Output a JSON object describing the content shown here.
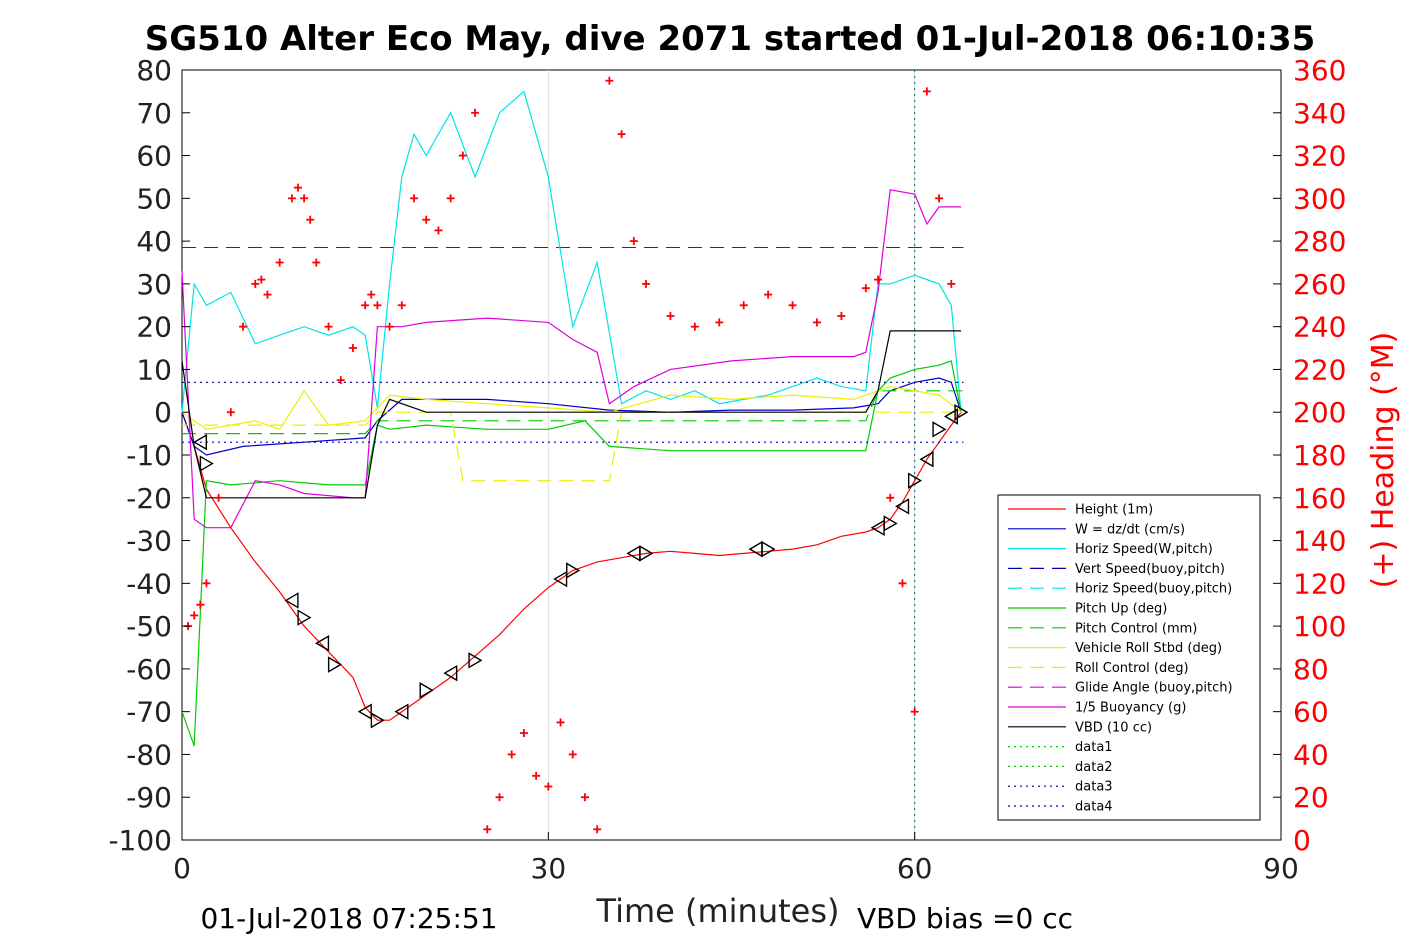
{
  "chart_data": {
    "type": "line",
    "title": "SG510 Alter Eco May, dive 2071 started 01-Jul-2018 06:10:35",
    "xlabel": "Time (minutes)",
    "ylabel_right": "(+) Heading (°M)",
    "footer_left": "01-Jul-2018 07:25:51",
    "footer_right": "VBD bias =0 cc",
    "xlim": [
      0,
      90
    ],
    "ylim": [
      -100,
      80
    ],
    "ylim_right": [
      0,
      360
    ],
    "x_ticks": [
      "0",
      "30",
      "60",
      "90"
    ],
    "y_ticks": [
      "80",
      "70",
      "60",
      "50",
      "40",
      "30",
      "20",
      "10",
      "0",
      "-10",
      "-20",
      "-30",
      "-40",
      "-50",
      "-60",
      "-70",
      "-80",
      "-90",
      "-100"
    ],
    "y_ticks_right": [
      "360",
      "340",
      "320",
      "300",
      "280",
      "260",
      "240",
      "220",
      "200",
      "180",
      "160",
      "140",
      "120",
      "100",
      "80",
      "60",
      "40",
      "20",
      "0"
    ],
    "grid": "x-only",
    "legend_placement": "lower-right",
    "series": [
      {
        "name": "Height (1m)",
        "color": "#ff0000",
        "style": "solid",
        "x": [
          0,
          1,
          2,
          4,
          6,
          8,
          10,
          12,
          14,
          15,
          16,
          17,
          18,
          20,
          22,
          24,
          26,
          28,
          30,
          32,
          34,
          36,
          38,
          40,
          42,
          44,
          46,
          48,
          50,
          52,
          54,
          56,
          57,
          58,
          59,
          60,
          61,
          62,
          63,
          63.8
        ],
        "y": [
          0,
          -8,
          -18,
          -27,
          -35,
          -42,
          -50,
          -56,
          -62,
          -69,
          -72,
          -72,
          -70,
          -66,
          -62,
          -57,
          -52,
          -46,
          -41,
          -37,
          -35,
          -34,
          -33,
          -32.5,
          -33,
          -33.5,
          -33,
          -32.5,
          -32,
          -31,
          -29,
          -28,
          -27,
          -25,
          -21,
          -16,
          -11,
          -7,
          -3,
          0
        ]
      },
      {
        "name": "W = dz/dt (cm/s)",
        "color": "#0000cc",
        "style": "solid",
        "x": [
          0,
          1,
          2,
          5,
          10,
          15,
          16,
          18,
          25,
          30,
          35,
          40,
          45,
          50,
          55,
          57,
          58,
          60,
          62,
          63,
          63.8
        ],
        "y": [
          0,
          -8,
          -10,
          -8,
          -7,
          -6,
          -2,
          3,
          3,
          2,
          0.5,
          0,
          0.5,
          0.5,
          1,
          2,
          5,
          7,
          8,
          7,
          0
        ]
      },
      {
        "name": "Horiz Speed(W,pitch)",
        "color": "#00e5e5",
        "style": "solid",
        "x": [
          0,
          1,
          2,
          4,
          6,
          8,
          10,
          12,
          14,
          15,
          16,
          17,
          18,
          19,
          20,
          22,
          24,
          26,
          28,
          30,
          32,
          34,
          36,
          38,
          40,
          42,
          44,
          46,
          48,
          50,
          52,
          54,
          56,
          57,
          58,
          60,
          62,
          63,
          63.8
        ],
        "y": [
          0,
          30,
          25,
          28,
          16,
          18,
          20,
          18,
          20,
          18,
          1,
          30,
          55,
          65,
          60,
          70,
          55,
          70,
          75,
          55,
          20,
          35,
          2,
          5,
          3,
          5,
          2,
          3,
          4,
          6,
          8,
          6,
          5,
          30,
          30,
          32,
          30,
          25,
          0
        ]
      },
      {
        "name": "Vert Speed(buoy,pitch)",
        "color": "#0000aa",
        "style": "dashed",
        "x": [],
        "y": []
      },
      {
        "name": "Horiz Speed(buoy,pitch)",
        "color": "#00e5e5",
        "style": "dashed",
        "x": [],
        "y": []
      },
      {
        "name": "Pitch Up (deg)",
        "color": "#00cc00",
        "style": "solid",
        "x": [
          0,
          1,
          2,
          4,
          8,
          12,
          15,
          16,
          17,
          20,
          25,
          30,
          33,
          35,
          40,
          45,
          50,
          56,
          57,
          58,
          60,
          62,
          63,
          63.8
        ],
        "y": [
          -70,
          -78,
          -16,
          -17,
          -16,
          -17,
          -17,
          -3,
          -4,
          -3,
          -4,
          -4,
          -2,
          -8,
          -9,
          -9,
          -9,
          -9,
          5,
          8,
          10,
          11,
          12,
          0
        ]
      },
      {
        "name": "Pitch Control (mm)",
        "color": "#00cc00",
        "style": "dashed",
        "x": [
          0,
          15,
          16,
          56,
          57,
          64
        ],
        "y": [
          -5,
          -5,
          -2,
          -2,
          5,
          5
        ]
      },
      {
        "name": "Vehicle Roll Stbd (deg)",
        "color": "#eeee00",
        "style": "solid",
        "x": [
          0,
          2,
          4,
          6,
          8,
          10,
          12,
          15,
          17,
          20,
          25,
          30,
          35,
          40,
          45,
          50,
          55,
          57,
          58,
          60,
          62,
          63.8
        ],
        "y": [
          0,
          -4,
          -3,
          -2,
          -4,
          5,
          -3,
          -2,
          4,
          3,
          2,
          1,
          0,
          4,
          3,
          4,
          3,
          5,
          6,
          5,
          4,
          0
        ]
      },
      {
        "name": "Roll Control (deg)",
        "color": "#eeee00",
        "style": "dashed",
        "x": [
          0,
          15,
          16,
          22,
          23,
          35,
          36,
          64
        ],
        "y": [
          -3,
          -3,
          0,
          0,
          -16,
          -16,
          0,
          0
        ]
      },
      {
        "name": "Glide Angle (buoy,pitch)",
        "color": "#dd00dd",
        "style": "dashed",
        "x": [],
        "y": []
      },
      {
        "name": "1/5 Buoyancy (g)",
        "color": "#dd00dd",
        "style": "solid",
        "x": [
          0,
          1,
          2,
          4,
          6,
          8,
          10,
          14,
          15,
          16,
          18,
          20,
          25,
          30,
          32,
          34,
          35,
          37,
          40,
          45,
          50,
          55,
          56,
          57,
          58,
          60,
          61,
          62,
          63.8
        ],
        "y": [
          33,
          -25,
          -27,
          -27,
          -16,
          -17,
          -19,
          -20,
          -20,
          20,
          20,
          21,
          22,
          21,
          17,
          14,
          2,
          6,
          10,
          12,
          13,
          13,
          14,
          28,
          52,
          51,
          44,
          48,
          48
        ]
      },
      {
        "name": "VBD (10 cc)",
        "color": "#000000",
        "style": "solid",
        "x": [
          0,
          1,
          2,
          10,
          15,
          16,
          17,
          20,
          56,
          57,
          58,
          60,
          63.8
        ],
        "y": [
          12,
          -8,
          -20,
          -20,
          -20,
          -3,
          3,
          0,
          0,
          5,
          19,
          19,
          19
        ]
      },
      {
        "name": "data1",
        "color": "#00cc00",
        "style": "dotted",
        "x": [],
        "y": []
      },
      {
        "name": "data2",
        "color": "#00cc00",
        "style": "dotted",
        "x": [],
        "y": []
      },
      {
        "name": "data3",
        "color": "#000088",
        "style": "dotted",
        "x": [
          0,
          64
        ],
        "y": [
          7,
          7
        ]
      },
      {
        "name": "data4",
        "color": "#0000cc",
        "style": "dotted",
        "x": [
          0,
          64
        ],
        "y": [
          -7,
          -7
        ]
      }
    ],
    "reference_lines": [
      {
        "axis": "y",
        "value": 38.5,
        "color": "#aa0000",
        "style": "dashed",
        "x_range": [
          0,
          64
        ]
      },
      {
        "axis": "x",
        "value": 60,
        "color": "#006666",
        "style": "dotted"
      }
    ],
    "heading_series": {
      "color": "#ff0000",
      "marker": "plus",
      "axis": "right",
      "x": [
        0.5,
        1,
        1.5,
        2,
        3,
        4,
        5,
        6,
        6.5,
        7,
        8,
        9,
        9.5,
        10,
        10.5,
        11,
        12,
        13,
        14,
        15,
        15.5,
        16,
        17,
        18,
        19,
        20,
        21,
        22,
        23,
        24,
        25,
        26,
        27,
        28,
        29,
        30,
        31,
        32,
        33,
        34,
        35,
        36,
        37,
        38,
        40,
        42,
        44,
        46,
        48,
        50,
        52,
        54,
        56,
        57,
        58,
        59,
        60,
        61,
        62,
        63
      ],
      "y": [
        100,
        105,
        110,
        120,
        160,
        200,
        240,
        260,
        262,
        255,
        270,
        300,
        305,
        300,
        290,
        270,
        240,
        215,
        230,
        250,
        255,
        250,
        240,
        250,
        300,
        290,
        285,
        300,
        320,
        340,
        5,
        20,
        40,
        50,
        30,
        25,
        55,
        40,
        20,
        5,
        355,
        330,
        280,
        260,
        245,
        240,
        242,
        250,
        255,
        250,
        242,
        245,
        258,
        262,
        160,
        120,
        60,
        350,
        300,
        260
      ]
    },
    "markers": {
      "name": "triangles",
      "color": "#000000",
      "x": [
        1.5,
        2,
        9,
        10,
        11.5,
        12.5,
        15,
        16,
        18,
        20,
        22,
        24,
        31,
        32,
        37,
        38,
        47,
        48,
        57,
        58,
        59,
        60,
        61,
        62,
        63,
        63.8
      ],
      "y": [
        -7,
        -12,
        -44,
        -48,
        -54,
        -59,
        -70,
        -72,
        -70,
        -65,
        -61,
        -58,
        -39,
        -37,
        -33,
        -33,
        -32,
        -32,
        -27,
        -26,
        -22,
        -16,
        -11,
        -4,
        -1,
        0
      ]
    }
  }
}
